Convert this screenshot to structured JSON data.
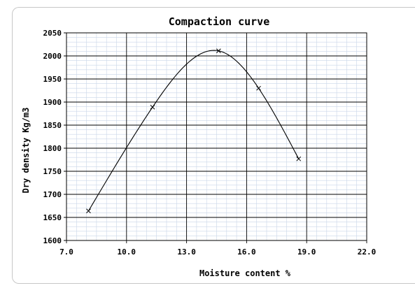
{
  "chart_data": {
    "type": "line",
    "title": "Compaction curve",
    "xlabel": "Moisture content %",
    "ylabel": "Dry density Kg/m3",
    "xlim": [
      7.0,
      22.0
    ],
    "ylim": [
      1600,
      2050
    ],
    "x_ticks": [
      "7.0",
      "10.0",
      "13.0",
      "16.0",
      "19.0",
      "22.0"
    ],
    "y_ticks": [
      "1600",
      "1650",
      "1700",
      "1750",
      "1800",
      "1850",
      "1900",
      "1950",
      "2000",
      "2050"
    ],
    "grid": true,
    "marker": "x",
    "series": [
      {
        "points": [
          {
            "x": 8.1,
            "y": 1664
          },
          {
            "x": 11.3,
            "y": 1889
          },
          {
            "x": 14.6,
            "y": 2011
          },
          {
            "x": 16.6,
            "y": 1930
          },
          {
            "x": 18.6,
            "y": 1777
          }
        ]
      }
    ],
    "colors": {
      "line": "#000000",
      "major_grid": "#000000",
      "minor_grid": "#c9d6e8"
    }
  }
}
